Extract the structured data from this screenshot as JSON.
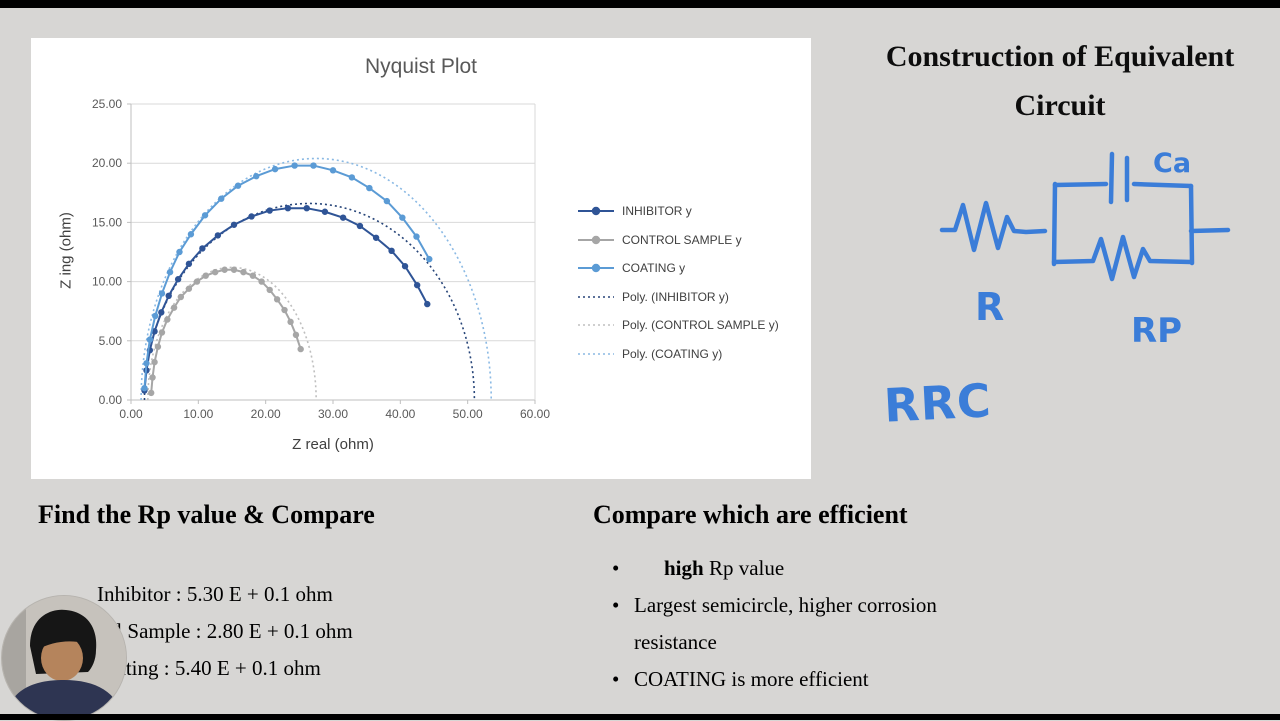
{
  "window": {
    "bg": "#d7d6d4",
    "letterbox": "#000000"
  },
  "chart_data": {
    "type": "scatter",
    "title": "Nyquist Plot",
    "xlabel": "Z real (ohm)",
    "ylabel": "Z ing (ohm)",
    "xlim": [
      0,
      60
    ],
    "ylim": [
      0,
      25
    ],
    "grid": true,
    "legend_position": "right",
    "xtick_labels": [
      "0.00",
      "10.00",
      "20.00",
      "30.00",
      "40.00",
      "50.00",
      "60.00"
    ],
    "ytick_labels": [
      "0.00",
      "5.00",
      "10.00",
      "15.00",
      "20.00",
      "25.00"
    ],
    "series": [
      {
        "name": "INHIBITOR y",
        "color": "#2f5496",
        "style": "solid-markers",
        "points": [
          [
            2.0,
            0.8
          ],
          [
            2.3,
            2.5
          ],
          [
            2.8,
            4.2
          ],
          [
            3.5,
            5.8
          ],
          [
            4.5,
            7.4
          ],
          [
            5.6,
            8.8
          ],
          [
            7.0,
            10.2
          ],
          [
            8.6,
            11.5
          ],
          [
            10.6,
            12.8
          ],
          [
            12.9,
            13.9
          ],
          [
            15.3,
            14.8
          ],
          [
            17.9,
            15.5
          ],
          [
            20.6,
            16.0
          ],
          [
            23.3,
            16.2
          ],
          [
            26.1,
            16.2
          ],
          [
            28.8,
            15.9
          ],
          [
            31.5,
            15.4
          ],
          [
            34.0,
            14.7
          ],
          [
            36.4,
            13.7
          ],
          [
            38.7,
            12.6
          ],
          [
            40.7,
            11.3
          ],
          [
            42.5,
            9.7
          ],
          [
            44.0,
            8.1
          ]
        ]
      },
      {
        "name": "CONTROL SAMPLE y",
        "color": "#a6a6a6",
        "style": "solid-markers",
        "points": [
          [
            3.0,
            0.6
          ],
          [
            3.2,
            1.9
          ],
          [
            3.5,
            3.2
          ],
          [
            4.0,
            4.5
          ],
          [
            4.6,
            5.7
          ],
          [
            5.4,
            6.8
          ],
          [
            6.4,
            7.8
          ],
          [
            7.4,
            8.7
          ],
          [
            8.6,
            9.4
          ],
          [
            9.8,
            10.0
          ],
          [
            11.1,
            10.5
          ],
          [
            12.5,
            10.8
          ],
          [
            13.9,
            11.0
          ],
          [
            15.3,
            11.0
          ],
          [
            16.7,
            10.8
          ],
          [
            18.1,
            10.5
          ],
          [
            19.4,
            10.0
          ],
          [
            20.6,
            9.3
          ],
          [
            21.7,
            8.5
          ],
          [
            22.8,
            7.6
          ],
          [
            23.7,
            6.6
          ],
          [
            24.5,
            5.5
          ],
          [
            25.2,
            4.3
          ]
        ]
      },
      {
        "name": "COATING y",
        "color": "#5b9bd5",
        "style": "solid-markers",
        "points": [
          [
            2.0,
            1.0
          ],
          [
            2.3,
            3.1
          ],
          [
            2.8,
            5.1
          ],
          [
            3.6,
            7.1
          ],
          [
            4.6,
            9.0
          ],
          [
            5.8,
            10.8
          ],
          [
            7.2,
            12.5
          ],
          [
            8.9,
            14.0
          ],
          [
            11.0,
            15.6
          ],
          [
            13.4,
            17.0
          ],
          [
            15.9,
            18.1
          ],
          [
            18.6,
            18.9
          ],
          [
            21.4,
            19.5
          ],
          [
            24.3,
            19.8
          ],
          [
            27.1,
            19.8
          ],
          [
            30.0,
            19.4
          ],
          [
            32.8,
            18.8
          ],
          [
            35.4,
            17.9
          ],
          [
            38.0,
            16.8
          ],
          [
            40.3,
            15.4
          ],
          [
            42.4,
            13.8
          ],
          [
            44.3,
            11.9
          ]
        ]
      },
      {
        "name": "Poly. (INHIBITOR y)",
        "color": "#264478",
        "style": "dotted",
        "ellipse": {
          "cx": 26.5,
          "a": 24.5,
          "b": 16.6
        }
      },
      {
        "name": "Poly. (CONTROL SAMPLE y)",
        "color": "#bfbfbf",
        "style": "dotted",
        "ellipse": {
          "cx": 15.0,
          "a": 12.5,
          "b": 11.2
        }
      },
      {
        "name": "Poly. (COATING y)",
        "color": "#8ab9e4",
        "style": "dotted",
        "ellipse": {
          "cx": 27.5,
          "a": 26.0,
          "b": 20.4
        }
      }
    ]
  },
  "circuit": {
    "title_line1": "Construction of Equivalent",
    "title_line2": "Circuit",
    "label_r": "R",
    "label_rp": "RP",
    "label_ca": "Ca",
    "note": "RRC",
    "ink": "#3b7dd8"
  },
  "rp_section": {
    "heading": "Find the Rp value & Compare",
    "lines": [
      "Inhibitor : 5.30 E + 0.1 ohm",
      "Control Sample : 2.80 E + 0.1 ohm",
      "Coating : 5.40 E + 0.1 ohm"
    ]
  },
  "efficiency_section": {
    "heading": "Compare which are efficient",
    "bullet_char": "•",
    "bullets": [
      {
        "bold": "high",
        "rest": " Rp value"
      },
      {
        "bold": "",
        "rest": "Largest semicircle, higher corrosion resistance"
      },
      {
        "bold": "",
        "rest": "COATING is more efficient"
      }
    ]
  }
}
